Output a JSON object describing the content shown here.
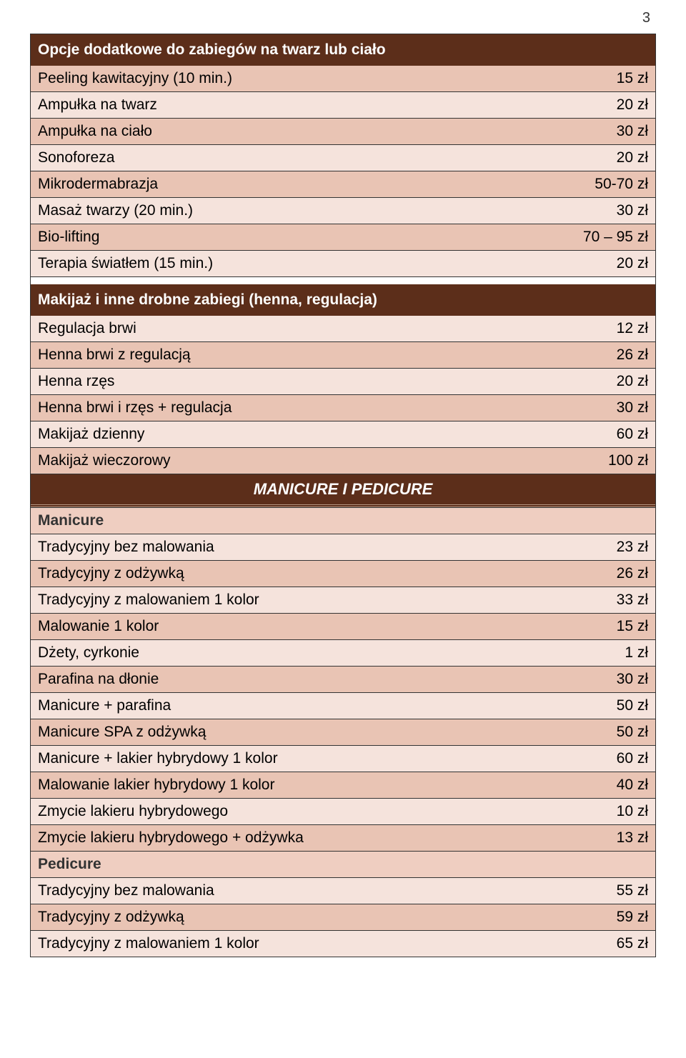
{
  "page_number": "3",
  "section1": {
    "header": "Opcje dodatkowe do zabiegów na twarz lub ciało",
    "rows": [
      {
        "label": "Peeling kawitacyjny (10 min.)",
        "price": "15 zł",
        "shade": "dark"
      },
      {
        "label": "Ampułka na twarz",
        "price": "20 zł",
        "shade": "light"
      },
      {
        "label": "Ampułka na ciało",
        "price": "30 zł",
        "shade": "dark"
      },
      {
        "label": "Sonoforeza",
        "price": "20 zł",
        "shade": "light"
      },
      {
        "label": "Mikrodermabrazja",
        "price": "50-70 zł",
        "shade": "dark"
      },
      {
        "label": "Masaż twarzy (20 min.)",
        "price": "30 zł",
        "shade": "light"
      },
      {
        "label": "Bio-lifting",
        "price": "70 – 95 zł",
        "shade": "dark"
      },
      {
        "label": "Terapia światłem (15 min.)",
        "price": "20 zł",
        "shade": "light"
      }
    ]
  },
  "section2": {
    "header": "Makijaż i inne drobne zabiegi (henna, regulacja)",
    "rows": [
      {
        "label": "Regulacja brwi",
        "price": "12 zł",
        "shade": "light"
      },
      {
        "label": "Henna brwi z regulacją",
        "price": "26 zł",
        "shade": "dark"
      },
      {
        "label": "Henna rzęs",
        "price": "20 zł",
        "shade": "light"
      },
      {
        "label": "Henna brwi i rzęs + regulacja",
        "price": "30 zł",
        "shade": "dark"
      },
      {
        "label": "Makijaż dzienny",
        "price": "60 zł",
        "shade": "light"
      },
      {
        "label": "Makijaż wieczorowy",
        "price": "100 zł",
        "shade": "dark"
      }
    ]
  },
  "mid_title": "MANICURE I PEDICURE",
  "section3": {
    "header": "Manicure",
    "rows": [
      {
        "label": "Tradycyjny bez malowania",
        "price": "23 zł",
        "shade": "light"
      },
      {
        "label": "Tradycyjny z odżywką",
        "price": "26 zł",
        "shade": "dark"
      },
      {
        "label": "Tradycyjny z malowaniem 1 kolor",
        "price": "33 zł",
        "shade": "light"
      },
      {
        "label": "Malowanie 1 kolor",
        "price": "15 zł",
        "shade": "dark"
      },
      {
        "label": "Dżety, cyrkonie",
        "price": "1 zł",
        "shade": "light"
      },
      {
        "label": "Parafina na dłonie",
        "price": "30 zł",
        "shade": "dark"
      },
      {
        "label": "Manicure + parafina",
        "price": "50 zł",
        "shade": "light"
      },
      {
        "label": "Manicure SPA z odżywką",
        "price": "50 zł",
        "shade": "dark"
      },
      {
        "label": "Manicure + lakier hybrydowy 1 kolor",
        "price": "60 zł",
        "shade": "light"
      },
      {
        "label": "Malowanie lakier hybrydowy 1 kolor",
        "price": "40 zł",
        "shade": "dark"
      },
      {
        "label": "Zmycie lakieru hybrydowego",
        "price": "10 zł",
        "shade": "light"
      },
      {
        "label": "Zmycie lakieru hybrydowego + odżywka",
        "price": "13 zł",
        "shade": "dark"
      }
    ]
  },
  "section4": {
    "header": "Pedicure",
    "rows": [
      {
        "label": "Tradycyjny bez malowania",
        "price": "55 zł",
        "shade": "light"
      },
      {
        "label": "Tradycyjny z odżywką",
        "price": "59 zł",
        "shade": "dark"
      },
      {
        "label": "Tradycyjny z malowaniem 1 kolor",
        "price": "65 zł",
        "shade": "light"
      }
    ]
  }
}
